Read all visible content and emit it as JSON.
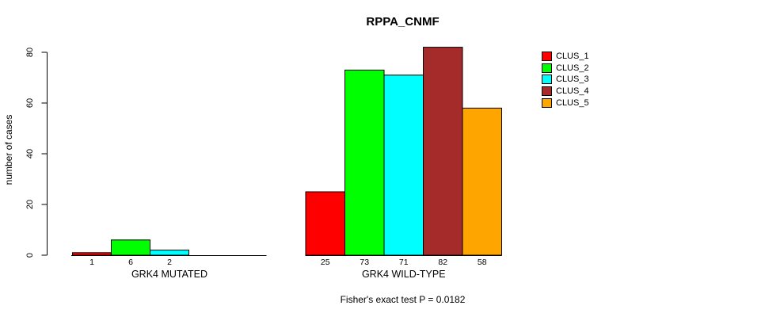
{
  "chart_data": {
    "type": "bar",
    "title": "RPPA_CNMF",
    "ylabel": "number of cases",
    "ylim": [
      0,
      80
    ],
    "yticks": [
      0,
      20,
      40,
      60,
      80
    ],
    "grid": false,
    "legend_position": "right",
    "series": [
      {
        "name": "CLUS_1",
        "color": "#FF0000"
      },
      {
        "name": "CLUS_2",
        "color": "#00FF00"
      },
      {
        "name": "CLUS_3",
        "color": "#00FFFF"
      },
      {
        "name": "CLUS_4",
        "color": "#A52A2A"
      },
      {
        "name": "CLUS_5",
        "color": "#FFA500"
      }
    ],
    "groups": [
      {
        "label": "GRK4 MUTATED",
        "values": [
          1,
          6,
          2,
          0,
          0
        ]
      },
      {
        "label": "GRK4 WILD-TYPE",
        "values": [
          25,
          73,
          71,
          82,
          58
        ]
      }
    ],
    "footnote": "Fisher's exact test P = 0.0182"
  }
}
